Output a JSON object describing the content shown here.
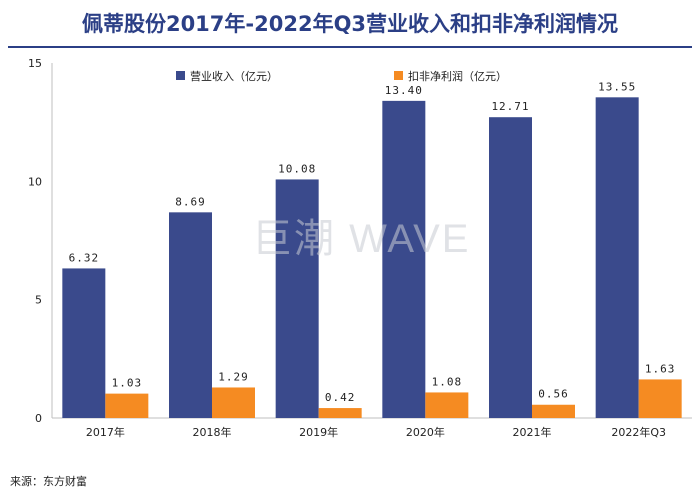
{
  "chart_data": {
    "type": "bar",
    "title": "佩蒂股份2017年-2022年Q3营业收入和扣非净利润情况",
    "categories": [
      "2017年",
      "2018年",
      "2019年",
      "2020年",
      "2021年",
      "2022年Q3"
    ],
    "series": [
      {
        "name": "营业收入（亿元）",
        "color": "#3a4a8c",
        "values": [
          6.32,
          8.69,
          10.08,
          13.4,
          12.71,
          13.55
        ],
        "labels": [
          "6.32",
          "8.69",
          "10.08",
          "13.40",
          "12.71",
          "13.55"
        ]
      },
      {
        "name": "扣非净利润（亿元）",
        "color": "#f58b22",
        "values": [
          1.03,
          1.29,
          0.42,
          1.08,
          0.56,
          1.63
        ],
        "labels": [
          "1.03",
          "1.29",
          "0.42",
          "1.08",
          "0.56",
          "1.63"
        ]
      }
    ],
    "ylim": [
      0,
      15
    ],
    "yticks": [
      "0",
      "5",
      "10",
      "15"
    ],
    "ytick_values": [
      0,
      5,
      10,
      15
    ],
    "xlabel": "",
    "ylabel": "",
    "legend": "top",
    "grid": false
  },
  "watermark": "巨潮 WAVE",
  "source": "来源：东方财富"
}
